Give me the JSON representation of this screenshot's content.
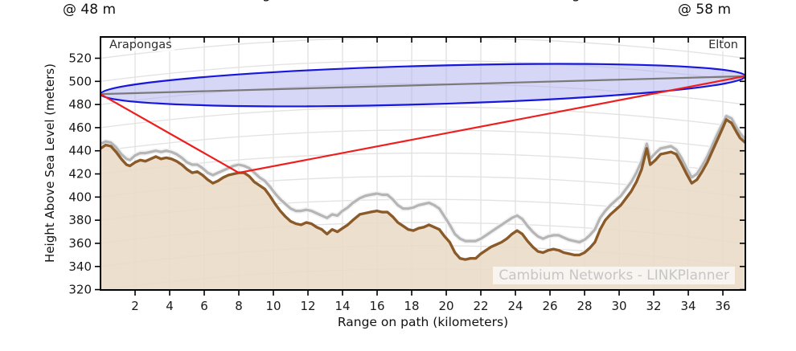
{
  "header": {
    "left_annotation": "@ 48 m",
    "right_annotation": "@ 58 m",
    "clipped_glyphs": {
      "g1": "g",
      "g2": "g"
    }
  },
  "watermark": "Cambium Networks - LINKPlanner",
  "chart_data": {
    "type": "area",
    "xlabel": "Range on path (kilometers)",
    "ylabel": "Height Above Sea Level (meters)",
    "xlim": [
      0,
      37.3
    ],
    "ylim": [
      319.7,
      538.4
    ],
    "xticks": [
      2,
      4,
      6,
      8,
      10,
      12,
      14,
      16,
      18,
      20,
      22,
      24,
      26,
      28,
      30,
      32,
      34,
      36
    ],
    "yticks": [
      320,
      340,
      360,
      380,
      400,
      420,
      440,
      460,
      480,
      500,
      520
    ],
    "grid": "curved (earth-curvature) horizontal gridlines, straight vertical gridlines",
    "earth_curvature_bulge_m": 18,
    "left_site": {
      "name": "Arapongas",
      "antenna_height_label": "@ 48 m",
      "antenna_amsl_m": 489
    },
    "right_site": {
      "name": "Elton",
      "antenna_height_label": "@ 58 m",
      "antenna_amsl_m": 504.5
    },
    "fresnel_zone": {
      "semi_minor_m": 16.6
    },
    "grazing_path": {
      "points_km_m": [
        [
          0,
          489
        ],
        [
          8.0,
          421
        ],
        [
          37.3,
          504.5
        ]
      ]
    },
    "terrain": {
      "note": "heights as displayed on plot (include earth-curvature bulge)",
      "x_km": [
        0.0,
        0.3,
        0.6,
        0.9,
        1.2,
        1.5,
        1.7,
        2.0,
        2.3,
        2.6,
        2.9,
        3.2,
        3.5,
        3.8,
        4.1,
        4.4,
        4.7,
        5.0,
        5.3,
        5.6,
        5.9,
        6.2,
        6.5,
        6.8,
        7.1,
        7.4,
        7.7,
        8.0,
        8.3,
        8.6,
        8.9,
        9.2,
        9.5,
        9.8,
        10.1,
        10.4,
        10.7,
        11.0,
        11.3,
        11.6,
        11.9,
        12.2,
        12.5,
        12.8,
        13.1,
        13.4,
        13.7,
        14.0,
        14.3,
        14.6,
        15.0,
        15.3,
        15.6,
        16.0,
        16.3,
        16.6,
        16.9,
        17.2,
        17.5,
        17.8,
        18.1,
        18.4,
        18.7,
        19.0,
        19.3,
        19.6,
        19.9,
        20.2,
        20.5,
        20.8,
        21.1,
        21.4,
        21.7,
        22.0,
        22.3,
        22.6,
        22.9,
        23.2,
        23.5,
        23.8,
        24.1,
        24.4,
        24.7,
        25.0,
        25.3,
        25.6,
        25.9,
        26.2,
        26.5,
        26.8,
        27.1,
        27.4,
        27.7,
        28.0,
        28.3,
        28.6,
        28.9,
        29.2,
        29.5,
        29.8,
        30.1,
        30.4,
        30.7,
        31.0,
        31.3,
        31.6,
        31.8,
        32.1,
        32.4,
        32.7,
        33.0,
        33.3,
        33.6,
        33.9,
        34.2,
        34.5,
        34.8,
        35.1,
        35.4,
        35.7,
        36.0,
        36.2,
        36.5,
        36.8,
        37.0,
        37.3
      ],
      "ground_m": [
        442,
        445,
        444,
        439,
        433,
        428,
        427,
        430,
        432,
        431,
        433,
        435,
        433,
        434,
        433,
        431,
        428,
        424,
        421,
        422,
        419,
        415,
        412,
        414,
        417,
        419,
        420,
        421,
        421,
        418,
        413,
        410,
        407,
        401,
        394,
        388,
        383,
        379,
        377,
        376,
        378,
        377,
        374,
        372,
        368,
        372,
        370,
        373,
        376,
        380,
        385,
        386,
        387,
        388,
        387,
        387,
        383,
        378,
        375,
        372,
        371,
        373,
        374,
        376,
        374,
        372,
        366,
        361,
        352,
        347,
        346,
        347,
        347,
        351,
        354,
        357,
        359,
        361,
        364,
        368,
        371,
        368,
        362,
        357,
        353,
        352,
        354,
        355,
        354,
        352,
        351,
        350,
        350,
        352,
        356,
        361,
        372,
        380,
        385,
        389,
        393,
        399,
        405,
        413,
        424,
        442,
        428,
        432,
        437,
        438,
        439,
        437,
        429,
        420,
        412,
        415,
        422,
        430,
        440,
        450,
        460,
        467,
        464,
        456,
        451,
        447
      ],
      "clutter_m": [
        446,
        448,
        447,
        443,
        437,
        433,
        432,
        436,
        438,
        438,
        439,
        440,
        439,
        440,
        439,
        437,
        434,
        430,
        428,
        428,
        425,
        421,
        419,
        421,
        423,
        425,
        427,
        428,
        427,
        425,
        421,
        417,
        414,
        409,
        403,
        398,
        394,
        390,
        388,
        388,
        389,
        388,
        386,
        384,
        382,
        385,
        384,
        388,
        391,
        395,
        399,
        401,
        402,
        403,
        402,
        402,
        398,
        393,
        390,
        390,
        391,
        393,
        394,
        395,
        393,
        390,
        383,
        376,
        368,
        364,
        362,
        362,
        362,
        364,
        367,
        370,
        373,
        376,
        379,
        382,
        384,
        381,
        375,
        370,
        366,
        364,
        366,
        367,
        367,
        365,
        363,
        362,
        361,
        363,
        367,
        372,
        382,
        388,
        393,
        397,
        401,
        407,
        413,
        421,
        431,
        446,
        433,
        438,
        442,
        443,
        444,
        441,
        434,
        425,
        417,
        420,
        427,
        435,
        445,
        455,
        464,
        470,
        468,
        460,
        455,
        450
      ]
    },
    "colors": {
      "fresnel_stroke": "#1616dd",
      "fresnel_fill": "rgba(173,173,238,0.5)",
      "center_line": "#7a7a7a",
      "grazing_line": "#ee1e1e",
      "ground_line": "#8a5a28",
      "clutter_line": "#b5b5b5",
      "clutter_halo": "#f2f2f2",
      "terrain_fill": "rgba(233,219,199,0.88)",
      "grid": "#e3e3e3",
      "axis": "#000000"
    }
  }
}
